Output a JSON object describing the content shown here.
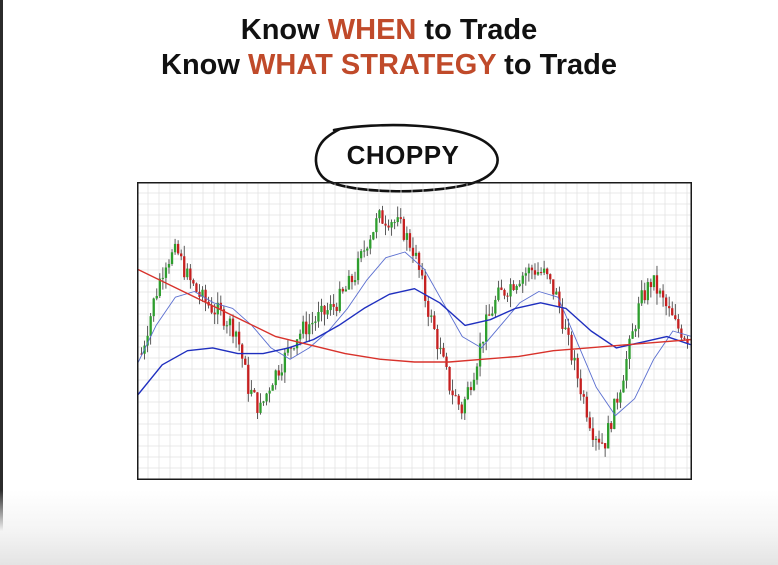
{
  "headline": {
    "line1": {
      "before": "Know ",
      "highlight": "WHEN",
      "after": " to Trade"
    },
    "line2": {
      "before": "Know ",
      "highlight": "WHAT STRATEGY",
      "after": " to Trade"
    }
  },
  "callout": {
    "label": "CHOPPY"
  },
  "colors": {
    "accent": "#c04a2a",
    "bull": "#2e9e2e",
    "bear": "#c62020",
    "ma_fast": "#5b6fd0",
    "ma_mid": "#1f2fbf",
    "ma_slow": "#d8322b",
    "grid": "#e3e3e3",
    "frame": "#1a1a1a"
  },
  "chart_data": {
    "type": "candlestick",
    "grid": true,
    "axes_labels_shown": false,
    "price_path": [
      0.42,
      0.6,
      0.75,
      0.78,
      0.68,
      0.62,
      0.58,
      0.55,
      0.5,
      0.3,
      0.22,
      0.33,
      0.4,
      0.48,
      0.52,
      0.55,
      0.58,
      0.63,
      0.7,
      0.82,
      0.9,
      0.9,
      0.86,
      0.78,
      0.6,
      0.45,
      0.3,
      0.22,
      0.36,
      0.52,
      0.62,
      0.66,
      0.7,
      0.72,
      0.7,
      0.62,
      0.45,
      0.3,
      0.15,
      0.1,
      0.25,
      0.42,
      0.6,
      0.68,
      0.6,
      0.52,
      0.48
    ],
    "moving_averages": [
      {
        "role": "fast",
        "color_key": "ma_fast",
        "values": [
          0.38,
          0.52,
          0.62,
          0.64,
          0.6,
          0.58,
          0.52,
          0.44,
          0.4,
          0.44,
          0.5,
          0.58,
          0.68,
          0.76,
          0.78,
          0.72,
          0.6,
          0.48,
          0.44,
          0.52,
          0.6,
          0.64,
          0.62,
          0.46,
          0.3,
          0.2,
          0.26,
          0.4,
          0.5,
          0.48
        ]
      },
      {
        "role": "medium",
        "color_key": "ma_mid",
        "values": [
          0.27,
          0.38,
          0.43,
          0.44,
          0.42,
          0.42,
          0.44,
          0.47,
          0.52,
          0.58,
          0.63,
          0.65,
          0.6,
          0.52,
          0.54,
          0.58,
          0.6,
          0.58,
          0.5,
          0.44,
          0.46,
          0.48,
          0.45
        ]
      },
      {
        "role": "slow",
        "color_key": "ma_slow",
        "values": [
          0.72,
          0.66,
          0.6,
          0.54,
          0.48,
          0.45,
          0.42,
          0.4,
          0.39,
          0.39,
          0.4,
          0.41,
          0.43,
          0.44,
          0.45,
          0.46,
          0.47
        ]
      }
    ]
  }
}
